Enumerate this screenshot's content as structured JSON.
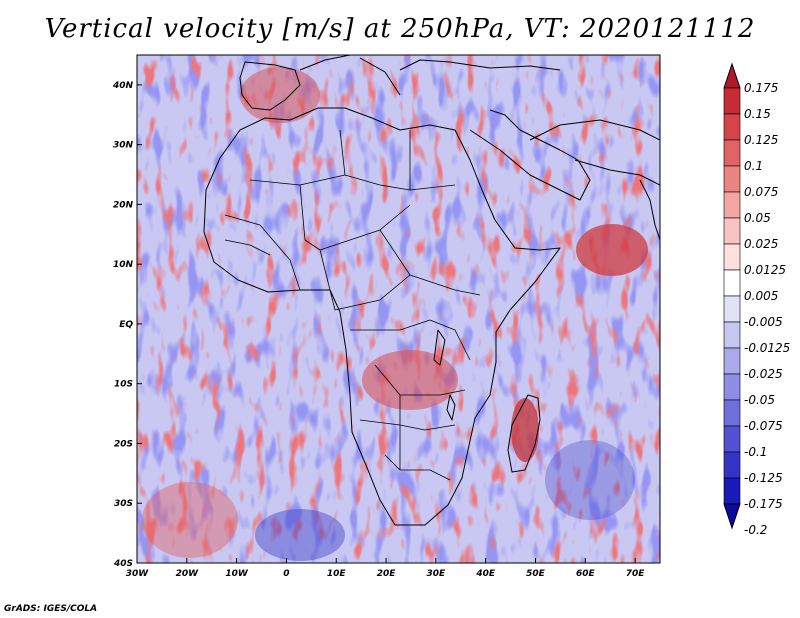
{
  "title": "Vertical velocity [m/s] at 250hPa, VT: 2020121112",
  "credit": "GrADS: IGES/COLA",
  "map": {
    "lon_range": [
      -30,
      75
    ],
    "lat_range": [
      -40,
      45
    ],
    "lon_ticks": [
      "30W",
      "20W",
      "10W",
      "0",
      "10E",
      "20E",
      "30E",
      "40E",
      "50E",
      "60E",
      "70E"
    ],
    "lat_ticks": [
      "40N",
      "30N",
      "20N",
      "10N",
      "EQ",
      "10S",
      "20S",
      "30S",
      "40S"
    ]
  },
  "colorbar": {
    "levels": [
      "0.175",
      "0.15",
      "0.125",
      "0.1",
      "0.075",
      "0.05",
      "0.025",
      "0.0125",
      "0.005",
      "-0.005",
      "-0.0125",
      "-0.025",
      "-0.05",
      "-0.075",
      "-0.1",
      "-0.125",
      "-0.175",
      "-0.2"
    ],
    "colors": [
      "#b2182b",
      "#c62c34",
      "#d6454a",
      "#e06466",
      "#ea8584",
      "#f2a5a3",
      "#f8c4c1",
      "#fbe0de",
      "#ffffff",
      "#e2e2f7",
      "#c6c6f0",
      "#aaaaea",
      "#8e8ee4",
      "#7070dc",
      "#5252d2",
      "#3434c6",
      "#1a1ab8",
      "#0a0aa0"
    ]
  }
}
